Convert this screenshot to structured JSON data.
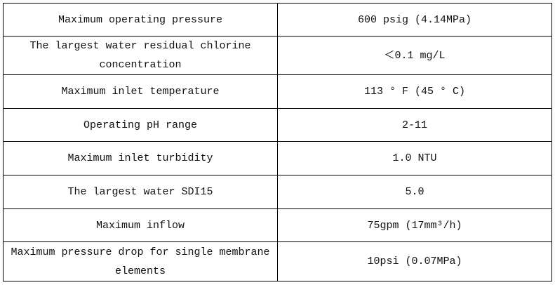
{
  "table": {
    "rows": [
      [
        "Maximum operating pressure",
        "600 psig (4.14MPa)"
      ],
      [
        "The largest water residual chlorine concentration",
        "＜0.1 mg/L"
      ],
      [
        "Maximum inlet temperature",
        "113 ° F (45 ° C)"
      ],
      [
        "Operating pH range",
        "2-11"
      ],
      [
        "Maximum inlet turbidity",
        "1.0 NTU"
      ],
      [
        "The largest water SDI15",
        "5.0"
      ],
      [
        "Maximum inflow",
        "75gpm (17mm³/h)"
      ],
      [
        "Maximum pressure drop for single membrane elements",
        "10psi (0.07MPa)"
      ]
    ]
  }
}
